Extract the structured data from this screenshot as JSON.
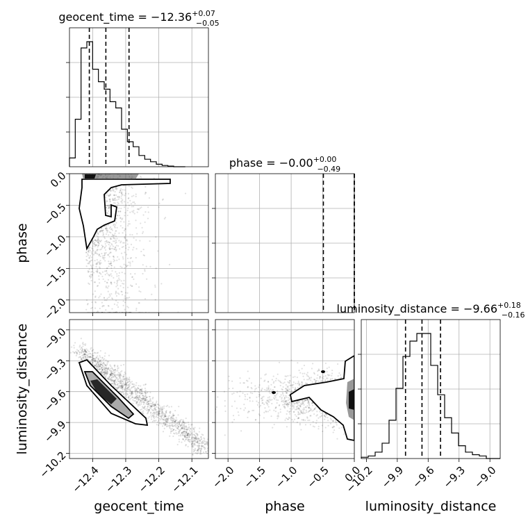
{
  "chart_data": {
    "type": "corner",
    "parameters": [
      {
        "name": "geocent_time",
        "axis_label": "geocent_time",
        "title_prefix": "geocent_time = ",
        "median": "−12.36",
        "plus": "+0.07",
        "minus": "−0.05",
        "range": [
          -12.47,
          -12.05
        ],
        "ticks": [
          -12.4,
          -12.3,
          -12.2,
          -12.1
        ],
        "tick_labels": [
          "−12.4",
          "−12.3",
          "−12.2",
          "−12.1"
        ],
        "quantiles": [
          -12.41,
          -12.36,
          -12.29
        ],
        "histogram": {
          "start": -12.47,
          "bin_width": 0.0175,
          "counts": [
            0.07,
            0.38,
            0.95,
            1.0,
            0.78,
            0.68,
            0.62,
            0.52,
            0.47,
            0.3,
            0.2,
            0.16,
            0.09,
            0.06,
            0.04,
            0.02,
            0.01,
            0.005,
            0.0,
            0.0
          ]
        }
      },
      {
        "name": "phase",
        "axis_label": "phase",
        "title_prefix": "phase = ",
        "median": "−0.00",
        "plus": "+0.00",
        "minus": "−0.49",
        "range": [
          -2.2,
          0.0
        ],
        "ticks": [
          -2.0,
          -1.5,
          -1.0,
          -0.5,
          0.0
        ],
        "tick_labels": [
          "−2.0",
          "−1.5",
          "−1.0",
          "−0.5",
          "0.0"
        ],
        "quantiles": [
          -0.49,
          0.0,
          0.0
        ],
        "histogram": {
          "start": -2.2,
          "bin_width": 0.11,
          "counts": [
            0.0,
            0.002,
            0.004,
            0.006,
            0.008,
            0.01,
            0.012,
            0.014,
            0.016,
            0.018,
            0.02,
            0.022,
            0.024,
            0.026,
            0.03,
            0.032,
            0.034,
            0.036,
            0.04,
            1.0
          ]
        }
      },
      {
        "name": "luminosity_distance",
        "axis_label": "luminosity_distance",
        "title_prefix": "luminosity_distance = ",
        "median": "−9.66",
        "plus": "+0.18",
        "minus": "−0.16",
        "range": [
          -10.25,
          -8.9
        ],
        "ticks": [
          -10.2,
          -9.9,
          -9.6,
          -9.3,
          -9.0
        ],
        "tick_labels": [
          "−10.2",
          "−9.9",
          "−9.6",
          "−9.3",
          "−9.0"
        ],
        "quantiles": [
          -9.82,
          -9.66,
          -9.48
        ],
        "histogram": {
          "start": -10.25,
          "bin_width": 0.0675,
          "counts": [
            0.01,
            0.02,
            0.05,
            0.12,
            0.3,
            0.55,
            0.8,
            0.92,
            0.98,
            0.98,
            0.73,
            0.5,
            0.32,
            0.2,
            0.1,
            0.05,
            0.03,
            0.02,
            0.0,
            0.0
          ]
        }
      }
    ],
    "grid": true,
    "sample_color": "#000000",
    "contour_color": "#000000"
  }
}
